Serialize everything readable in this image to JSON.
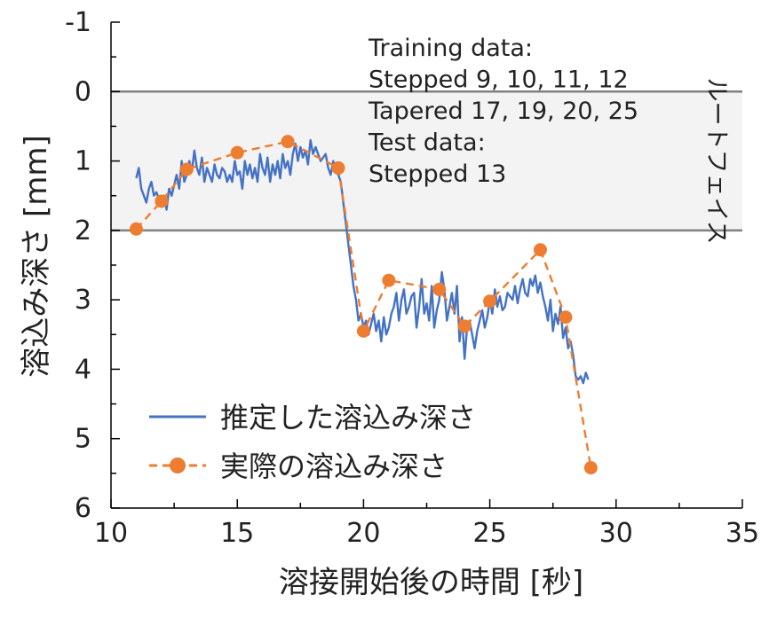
{
  "chart_data": {
    "type": "line",
    "title": "",
    "xlabel": "溶接開始後の時間 [秒]",
    "ylabel": "溶込み深さ [mm]",
    "xlim": [
      10,
      35
    ],
    "ylim": [
      -1,
      6
    ],
    "y_inverted": true,
    "x_ticks": [
      10,
      15,
      20,
      25,
      30,
      35
    ],
    "y_ticks": [
      -1,
      0,
      1,
      2,
      3,
      4,
      5,
      6
    ],
    "grid": false,
    "legend_position": "bottom-left",
    "band": {
      "y_from": 0,
      "y_to": 2,
      "label": "ルートフェイス"
    },
    "annotation_lines": [
      "Training data:",
      "Stepped 9, 10, 11, 12",
      "Tapered 17, 19, 20, 25",
      "Test data:",
      "Stepped 13"
    ],
    "series": [
      {
        "name": "推定した溶込み深さ",
        "color": "#4472C4",
        "style": "solid",
        "x": [
          11.0,
          11.1,
          11.2,
          11.3,
          11.4,
          11.5,
          11.6,
          11.7,
          11.8,
          11.9,
          12.0,
          12.1,
          12.2,
          12.3,
          12.4,
          12.5,
          12.6,
          12.7,
          12.8,
          12.9,
          13.0,
          13.1,
          13.2,
          13.3,
          13.4,
          13.5,
          13.6,
          13.7,
          13.8,
          13.9,
          14.0,
          14.1,
          14.2,
          14.3,
          14.4,
          14.5,
          14.6,
          14.7,
          14.8,
          14.9,
          15.0,
          15.1,
          15.2,
          15.3,
          15.4,
          15.5,
          15.6,
          15.7,
          15.8,
          15.9,
          16.0,
          16.1,
          16.2,
          16.3,
          16.4,
          16.5,
          16.6,
          16.7,
          16.8,
          16.9,
          17.0,
          17.1,
          17.2,
          17.3,
          17.4,
          17.5,
          17.6,
          17.7,
          17.8,
          17.9,
          18.0,
          18.1,
          18.2,
          18.3,
          18.4,
          18.5,
          18.6,
          18.7,
          18.8,
          18.9,
          19.0,
          19.1,
          19.2,
          19.3,
          19.4,
          19.5,
          19.6,
          19.7,
          19.8,
          19.9,
          20.0,
          20.1,
          20.2,
          20.3,
          20.4,
          20.5,
          20.6,
          20.7,
          20.8,
          20.9,
          21.0,
          21.1,
          21.2,
          21.3,
          21.4,
          21.5,
          21.6,
          21.7,
          21.8,
          21.9,
          22.0,
          22.1,
          22.2,
          22.3,
          22.4,
          22.5,
          22.6,
          22.7,
          22.8,
          22.9,
          23.0,
          23.1,
          23.2,
          23.3,
          23.4,
          23.5,
          23.6,
          23.7,
          23.8,
          23.9,
          24.0,
          24.1,
          24.2,
          24.3,
          24.4,
          24.5,
          24.6,
          24.7,
          24.8,
          24.9,
          25.0,
          25.1,
          25.2,
          25.3,
          25.4,
          25.5,
          25.6,
          25.7,
          25.8,
          25.9,
          26.0,
          26.1,
          26.2,
          26.3,
          26.4,
          26.5,
          26.6,
          26.7,
          26.8,
          26.9,
          27.0,
          27.1,
          27.2,
          27.3,
          27.4,
          27.5,
          27.6,
          27.7,
          27.8,
          27.9,
          28.0,
          28.1,
          28.2,
          28.3,
          28.4,
          28.5,
          28.6,
          28.7,
          28.8,
          28.9
        ],
        "y": [
          1.25,
          1.1,
          1.4,
          1.5,
          1.6,
          1.4,
          1.3,
          1.5,
          1.45,
          1.55,
          1.6,
          1.5,
          1.7,
          1.4,
          1.5,
          1.35,
          1.2,
          1.4,
          1.0,
          1.3,
          1.2,
          1.0,
          1.15,
          0.85,
          1.1,
          1.2,
          0.95,
          1.3,
          1.1,
          1.2,
          1.3,
          1.05,
          1.2,
          1.25,
          1.1,
          1.15,
          1.3,
          1.2,
          1.3,
          1.0,
          1.2,
          1.15,
          1.4,
          1.0,
          1.2,
          1.05,
          1.25,
          1.1,
          1.3,
          0.9,
          1.1,
          1.2,
          0.95,
          1.3,
          1.05,
          1.2,
          1.0,
          1.25,
          0.9,
          1.1,
          1.0,
          1.2,
          0.9,
          0.75,
          1.0,
          0.8,
          0.95,
          0.85,
          1.05,
          0.7,
          0.9,
          0.8,
          0.9,
          1.0,
          0.95,
          0.9,
          1.1,
          1.2,
          1.0,
          1.15,
          1.2,
          1.3,
          1.6,
          1.9,
          2.2,
          2.5,
          2.8,
          3.0,
          3.3,
          3.2,
          3.4,
          3.3,
          3.5,
          3.35,
          3.2,
          3.45,
          3.3,
          3.6,
          3.25,
          3.5,
          3.4,
          3.2,
          3.1,
          2.9,
          3.3,
          3.0,
          2.85,
          3.2,
          3.1,
          2.95,
          2.9,
          3.4,
          3.1,
          2.7,
          3.2,
          3.05,
          3.3,
          2.8,
          3.4,
          3.15,
          3.0,
          2.6,
          2.85,
          3.3,
          3.1,
          2.9,
          3.2,
          2.8,
          3.6,
          3.25,
          3.85,
          3.4,
          3.3,
          3.5,
          3.7,
          3.45,
          3.3,
          3.15,
          3.4,
          3.25,
          3.0,
          3.2,
          2.85,
          3.1,
          2.95,
          3.15,
          3.1,
          2.9,
          2.95,
          3.0,
          2.8,
          3.05,
          2.85,
          2.7,
          2.9,
          2.95,
          2.7,
          2.8,
          2.65,
          2.9,
          2.75,
          2.95,
          3.1,
          3.3,
          3.0,
          3.45,
          3.2,
          3.35,
          3.1,
          3.55,
          3.4,
          3.7,
          3.6,
          3.8,
          4.1,
          4.15,
          4.1,
          4.2,
          4.05,
          4.15
        ]
      },
      {
        "name": "実際の溶込み深さ",
        "color": "#ED7D31",
        "style": "dashed-markers",
        "x": [
          11,
          12,
          13,
          15,
          17,
          19,
          20,
          21,
          23,
          24,
          25,
          27,
          28,
          29
        ],
        "y": [
          1.98,
          1.58,
          1.12,
          0.88,
          0.72,
          1.1,
          3.45,
          2.72,
          2.85,
          3.38,
          3.02,
          2.28,
          3.25,
          5.42
        ]
      }
    ]
  }
}
